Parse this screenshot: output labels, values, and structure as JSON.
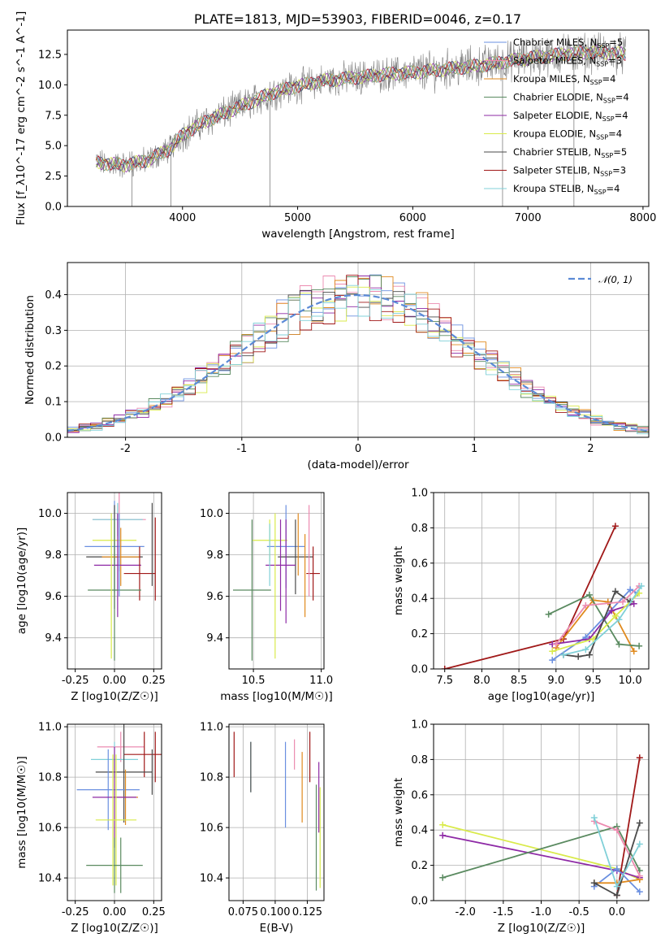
{
  "figure_title": "PLATE=1813, MJD=53903, FIBERID=0046, z=0.17",
  "colors": {
    "Chabrier MILES": "#6a8fe0",
    "Salpeter MILES": "#ec8bb0",
    "Kroupa MILES": "#e08a1e",
    "Chabrier ELODIE": "#5a8a60",
    "Salpeter ELODIE": "#8e2aa6",
    "Kroupa ELODIE": "#d9ea4a",
    "Chabrier STELIB": "#4a4a4a",
    "Salpeter STELIB": "#a01818",
    "Kroupa STELIB": "#80d0d8",
    "data": "#808080",
    "gauss": "#5b8ad6",
    "grid": "#b0b0b0"
  },
  "chart_data": [
    {
      "id": "spectrum",
      "type": "line",
      "title": "PLATE=1813, MJD=53903, FIBERID=0046, z=0.17",
      "xlabel": "wavelength [Angstrom, rest frame]",
      "ylabel": "Flux [f_λ10^-17 erg cm^-2 s^-1 A^-1]",
      "xlim": [
        3000,
        8050
      ],
      "ylim": [
        0,
        14.5
      ],
      "xticks": [
        4000,
        5000,
        6000,
        7000,
        8000
      ],
      "yticks": [
        0.0,
        2.5,
        5.0,
        7.5,
        10.0,
        12.5
      ],
      "grid": false,
      "legend_position": "right",
      "legend": [
        {
          "label": "Chabrier MILES, N",
          "sub": "SSP",
          "suffix": "=5"
        },
        {
          "label": "Salpeter MILES, N",
          "sub": "SSP",
          "suffix": "=3"
        },
        {
          "label": "Kroupa MILES, N",
          "sub": "SSP",
          "suffix": "=4"
        },
        {
          "label": "Chabrier ELODIE, N",
          "sub": "SSP",
          "suffix": "=4"
        },
        {
          "label": "Salpeter ELODIE, N",
          "sub": "SSP",
          "suffix": "=4"
        },
        {
          "label": "Kroupa ELODIE, N",
          "sub": "SSP",
          "suffix": "=4"
        },
        {
          "label": "Chabrier STELIB, N",
          "sub": "SSP",
          "suffix": "=5"
        },
        {
          "label": "Salpeter STELIB, N",
          "sub": "SSP",
          "suffix": "=3"
        },
        {
          "label": "Kroupa STELIB, N",
          "sub": "SSP",
          "suffix": "=4"
        }
      ],
      "continuum": {
        "x": [
          3250,
          3500,
          3700,
          3900,
          4000,
          4200,
          4400,
          4600,
          4800,
          5000,
          5200,
          5400,
          5600,
          5800,
          6000,
          6200,
          6400,
          6600,
          6800,
          7000,
          7200,
          7400,
          7600,
          7850
        ],
        "y": [
          3.6,
          3.4,
          3.8,
          4.8,
          5.9,
          7.0,
          7.8,
          8.6,
          9.4,
          9.9,
          10.3,
          10.5,
          10.7,
          10.9,
          11.0,
          11.2,
          11.4,
          11.6,
          11.9,
          12.2,
          12.4,
          12.6,
          12.7,
          12.5
        ]
      },
      "model_range": [
        3250,
        7850
      ],
      "data_range": [
        3250,
        7850
      ]
    },
    {
      "id": "residuals",
      "type": "histogram",
      "xlabel": "(data-model)/error",
      "ylabel": "Normed distribution",
      "xlim": [
        -2.5,
        2.5
      ],
      "ylim": [
        0,
        0.49
      ],
      "xticks": [
        -2,
        -1,
        0,
        1,
        2
      ],
      "yticks": [
        0.0,
        0.1,
        0.2,
        0.3,
        0.4
      ],
      "grid": true,
      "legend_position": "upper right",
      "gauss_label": "𝒩(0, 1)",
      "bin_width": 0.1
    },
    {
      "id": "age-vs-Z",
      "type": "errorbar",
      "xlabel": "Z [log10(Z/Z☉)]",
      "ylabel": "age  [log10(age/yr)]",
      "xlim": [
        -0.3,
        0.3
      ],
      "ylim": [
        9.25,
        10.1
      ],
      "xticks": [
        -0.25,
        0.0,
        0.25
      ],
      "yticks": [
        9.4,
        9.6,
        9.8,
        10.0
      ],
      "grid": true,
      "points": [
        {
          "model": "Salpeter MILES",
          "x": 0.03,
          "xerr": 0.17,
          "y": 9.97,
          "yerr": 0.25
        },
        {
          "model": "Kroupa STELIB",
          "x": 0.02,
          "xerr": 0.16,
          "y": 9.97,
          "yerr": 0.08
        },
        {
          "model": "Kroupa ELODIE",
          "x": 0.0,
          "xerr": 0.14,
          "y": 9.87,
          "yerr": 0.1
        },
        {
          "model": "Chabrier MILES",
          "x": 0.0,
          "xerr": 0.19,
          "y": 9.84,
          "yerr": 0.22
        },
        {
          "model": "Chabrier STELIB",
          "x": 0.0,
          "xerr": 0.18,
          "y": 9.79,
          "yerr": 0.25
        },
        {
          "model": "Kroupa MILES",
          "x": 0.04,
          "xerr": 0.12,
          "y": 9.79,
          "yerr": 0.14
        },
        {
          "model": "Salpeter ELODIE",
          "x": 0.02,
          "xerr": 0.15,
          "y": 9.75,
          "yerr": 0.25
        },
        {
          "model": "Salpeter STELIB",
          "x": 0.16,
          "xerr": 0.1,
          "y": 9.71,
          "yerr": 0.13
        },
        {
          "model": "Chabrier ELODIE",
          "x": 0.0,
          "xerr": 0.17,
          "y": 9.63,
          "yerr": 0.34
        },
        {
          "model": "Chabrier STELIB",
          "x": 0.24,
          "xerr": 0.0,
          "y": 9.85,
          "yerr": 0.2
        },
        {
          "model": "Salpeter STELIB",
          "x": 0.26,
          "xerr": 0.0,
          "y": 9.78,
          "yerr": 0.2
        },
        {
          "model": "Kroupa ELODIE",
          "x": -0.02,
          "xerr": 0.0,
          "y": 9.65,
          "yerr": 0.35
        },
        {
          "model": "Chabrier MILES",
          "x": 0.03,
          "xerr": 0.0,
          "y": 9.8,
          "yerr": 0.2
        }
      ]
    },
    {
      "id": "age-vs-mass",
      "type": "errorbar",
      "xlabel": "mass [log10(M/M☉)]",
      "ylabel": "",
      "xlim": [
        10.32,
        11.02
      ],
      "ylim": [
        9.25,
        10.1
      ],
      "xticks": [
        10.5,
        11.0
      ],
      "yticks": [
        9.4,
        9.6,
        9.8,
        10.0
      ],
      "grid": true,
      "points": [
        {
          "model": "Kroupa ELODIE",
          "x": 10.62,
          "xerr": 0.13,
          "y": 9.87,
          "yerr": 0.1
        },
        {
          "model": "Chabrier MILES",
          "x": 10.74,
          "xerr": 0.14,
          "y": 9.84,
          "yerr": 0.2
        },
        {
          "model": "Chabrier STELIB",
          "x": 10.81,
          "xerr": 0.13,
          "y": 9.79,
          "yerr": 0.18
        },
        {
          "model": "Salpeter ELODIE",
          "x": 10.7,
          "xerr": 0.11,
          "y": 9.75,
          "yerr": 0.22
        },
        {
          "model": "Salpeter STELIB",
          "x": 10.94,
          "xerr": 0.05,
          "y": 9.71,
          "yerr": 0.13
        },
        {
          "model": "Chabrier ELODIE",
          "x": 10.49,
          "xerr": 0.14,
          "y": 9.63,
          "yerr": 0.34
        },
        {
          "model": "Kroupa MILES",
          "x": 10.83,
          "xerr": 0.0,
          "y": 9.85,
          "yerr": 0.15
        },
        {
          "model": "Salpeter MILES",
          "x": 10.91,
          "xerr": 0.0,
          "y": 9.82,
          "yerr": 0.22
        },
        {
          "model": "Kroupa STELIB",
          "x": 10.62,
          "xerr": 0.0,
          "y": 9.8,
          "yerr": 0.15
        },
        {
          "model": "Salpeter ELODIE",
          "x": 10.74,
          "xerr": 0.0,
          "y": 9.72,
          "yerr": 0.25
        },
        {
          "model": "Kroupa ELODIE",
          "x": 10.66,
          "xerr": 0.0,
          "y": 9.65,
          "yerr": 0.35
        },
        {
          "model": "Kroupa MILES",
          "x": 10.88,
          "xerr": 0.0,
          "y": 9.7,
          "yerr": 0.2
        }
      ]
    },
    {
      "id": "weight-vs-age",
      "type": "line",
      "xlabel": "age  [log10(age/yr)]",
      "ylabel": "mass weight",
      "xlim": [
        7.35,
        10.25
      ],
      "ylim": [
        0,
        1.0
      ],
      "xticks": [
        7.5,
        8.0,
        8.5,
        9.0,
        9.5,
        10.0
      ],
      "yticks": [
        0.0,
        0.2,
        0.4,
        0.6,
        0.8,
        1.0
      ],
      "grid": true,
      "series": [
        {
          "model": "Salpeter STELIB",
          "x": [
            7.5,
            9.1,
            9.8
          ],
          "y": [
            0.0,
            0.17,
            0.81
          ]
        },
        {
          "model": "Chabrier MILES",
          "x": [
            8.95,
            9.4,
            10.0,
            10.1
          ],
          "y": [
            0.05,
            0.18,
            0.45,
            0.43
          ]
        },
        {
          "model": "Kroupa MILES",
          "x": [
            9.0,
            9.5,
            9.7,
            10.05
          ],
          "y": [
            0.12,
            0.39,
            0.38,
            0.1
          ]
        },
        {
          "model": "Chabrier ELODIE",
          "x": [
            8.9,
            9.45,
            9.85,
            10.12
          ],
          "y": [
            0.31,
            0.42,
            0.14,
            0.13
          ]
        },
        {
          "model": "Salpeter ELODIE",
          "x": [
            8.95,
            9.45,
            9.75,
            10.05
          ],
          "y": [
            0.14,
            0.17,
            0.33,
            0.37
          ]
        },
        {
          "model": "Kroupa ELODIE",
          "x": [
            8.95,
            9.5,
            9.8,
            10.12
          ],
          "y": [
            0.1,
            0.17,
            0.3,
            0.43
          ]
        },
        {
          "model": "Chabrier STELIB",
          "x": [
            9.1,
            9.3,
            9.45,
            9.8,
            10.0
          ],
          "y": [
            0.08,
            0.07,
            0.08,
            0.44,
            0.38
          ]
        },
        {
          "model": "Salpeter MILES",
          "x": [
            9.0,
            9.4,
            9.9,
            10.12
          ],
          "y": [
            0.14,
            0.36,
            0.38,
            0.47
          ]
        },
        {
          "model": "Kroupa STELIB",
          "x": [
            9.1,
            9.4,
            9.85,
            10.15
          ],
          "y": [
            0.08,
            0.11,
            0.28,
            0.47
          ]
        }
      ]
    },
    {
      "id": "mass-vs-Z",
      "type": "errorbar",
      "xlabel": "Z [log10(Z/Z☉)]",
      "ylabel": "mass [log10(M/M☉)]",
      "xlim": [
        -0.3,
        0.3
      ],
      "ylim": [
        10.31,
        11.01
      ],
      "xticks": [
        -0.25,
        0.0,
        0.25
      ],
      "yticks": [
        10.4,
        10.6,
        10.8,
        11.0
      ],
      "grid": true,
      "points": [
        {
          "model": "Salpeter MILES",
          "x": 0.04,
          "xerr": 0.15,
          "y": 10.92,
          "yerr": 0.06
        },
        {
          "model": "Salpeter STELIB",
          "x": 0.19,
          "xerr": 0.13,
          "y": 10.89,
          "yerr": 0.09
        },
        {
          "model": "Kroupa STELIB",
          "x": 0.0,
          "xerr": 0.15,
          "y": 10.87,
          "yerr": 0.07
        },
        {
          "model": "Chabrier STELIB",
          "x": 0.06,
          "xerr": 0.18,
          "y": 10.82,
          "yerr": 0.2
        },
        {
          "model": "Chabrier MILES",
          "x": -0.04,
          "xerr": 0.2,
          "y": 10.75,
          "yerr": 0.16
        },
        {
          "model": "Kroupa MILES",
          "x": 0.07,
          "xerr": 0.08,
          "y": 10.72,
          "yerr": 0.11
        },
        {
          "model": "Salpeter ELODIE",
          "x": 0.0,
          "xerr": 0.14,
          "y": 10.72,
          "yerr": 0.2
        },
        {
          "model": "Kroupa ELODIE",
          "x": 0.01,
          "xerr": 0.13,
          "y": 10.63,
          "yerr": 0.26
        },
        {
          "model": "Chabrier ELODIE",
          "x": 0.0,
          "xerr": 0.18,
          "y": 10.45,
          "yerr": 0.11
        },
        {
          "model": "Chabrier STELIB",
          "x": 0.24,
          "xerr": 0.0,
          "y": 10.82,
          "yerr": 0.09
        },
        {
          "model": "Salpeter STELIB",
          "x": 0.26,
          "xerr": 0.0,
          "y": 10.88,
          "yerr": 0.1
        },
        {
          "model": "Kroupa ELODIE",
          "x": -0.01,
          "xerr": 0.0,
          "y": 10.63,
          "yerr": 0.26
        },
        {
          "model": "Chabrier ELODIE",
          "x": 0.04,
          "xerr": 0.0,
          "y": 10.45,
          "yerr": 0.11
        }
      ]
    },
    {
      "id": "mass-vs-ebv",
      "type": "errorbar",
      "xlabel": "E(B-V)",
      "ylabel": "",
      "xlim": [
        0.064,
        0.138
      ],
      "ylim": [
        10.31,
        11.01
      ],
      "xticks": [
        0.075,
        0.1,
        0.125
      ],
      "yticks": [
        10.4,
        10.6,
        10.8,
        11.0
      ],
      "grid": true,
      "points": [
        {
          "model": "Salpeter STELIB",
          "x": 0.068,
          "xerr": 0.0,
          "y": 10.89,
          "yerr": 0.09
        },
        {
          "model": "Kroupa STELIB",
          "x": 0.081,
          "xerr": 0.0,
          "y": 10.84,
          "yerr": 0.1
        },
        {
          "model": "Chabrier STELIB",
          "x": 0.081,
          "xerr": 0.0,
          "y": 10.84,
          "yerr": 0.1
        },
        {
          "model": "Chabrier MILES",
          "x": 0.108,
          "xerr": 0.0,
          "y": 10.77,
          "yerr": 0.17
        },
        {
          "model": "Salpeter MILES",
          "x": 0.115,
          "xerr": 0.0,
          "y": 10.89,
          "yerr": 0.06
        },
        {
          "model": "Kroupa MILES",
          "x": 0.121,
          "xerr": 0.0,
          "y": 10.76,
          "yerr": 0.14
        },
        {
          "model": "Salpeter STELIB",
          "x": 0.127,
          "xerr": 0.0,
          "y": 10.88,
          "yerr": 0.1
        },
        {
          "model": "Chabrier ELODIE",
          "x": 0.132,
          "xerr": 0.0,
          "y": 10.56,
          "yerr": 0.21
        },
        {
          "model": "Salpeter ELODIE",
          "x": 0.134,
          "xerr": 0.0,
          "y": 10.72,
          "yerr": 0.14
        },
        {
          "model": "Kroupa ELODIE",
          "x": 0.135,
          "xerr": 0.0,
          "y": 10.56,
          "yerr": 0.2
        }
      ]
    },
    {
      "id": "weight-vs-Z",
      "type": "line",
      "xlabel": "Z [log10(Z/Z☉)]",
      "ylabel": "mass weight",
      "xlim": [
        -2.42,
        0.42
      ],
      "ylim": [
        0,
        1.0
      ],
      "xticks": [
        -2.0,
        -1.5,
        -1.0,
        -0.5,
        0.0
      ],
      "yticks": [
        0.0,
        0.2,
        0.4,
        0.6,
        0.8,
        1.0
      ],
      "grid": true,
      "series": [
        {
          "model": "Kroupa ELODIE",
          "x": [
            -2.3,
            0.0,
            0.3
          ],
          "y": [
            0.43,
            0.18,
            0.12
          ]
        },
        {
          "model": "Salpeter ELODIE",
          "x": [
            -2.3,
            0.0,
            0.3
          ],
          "y": [
            0.37,
            0.17,
            0.13
          ]
        },
        {
          "model": "Chabrier ELODIE",
          "x": [
            -2.3,
            0.0,
            0.3
          ],
          "y": [
            0.13,
            0.42,
            0.17
          ]
        },
        {
          "model": "Salpeter STELIB",
          "x": [
            0.0,
            0.3
          ],
          "y": [
            0.03,
            0.81
          ]
        },
        {
          "model": "Chabrier MILES",
          "x": [
            -0.3,
            0.0,
            0.3
          ],
          "y": [
            0.08,
            0.18,
            0.05
          ]
        },
        {
          "model": "Kroupa MILES",
          "x": [
            -0.3,
            0.0,
            0.3
          ],
          "y": [
            0.1,
            0.1,
            0.12
          ]
        },
        {
          "model": "Salpeter MILES",
          "x": [
            -0.3,
            0.0,
            0.3
          ],
          "y": [
            0.45,
            0.4,
            0.14
          ]
        },
        {
          "model": "Chabrier STELIB",
          "x": [
            -0.3,
            0.0,
            0.3
          ],
          "y": [
            0.1,
            0.03,
            0.44
          ]
        },
        {
          "model": "Kroupa STELIB",
          "x": [
            -0.3,
            0.0,
            0.3
          ],
          "y": [
            0.47,
            0.08,
            0.32
          ]
        }
      ]
    }
  ]
}
